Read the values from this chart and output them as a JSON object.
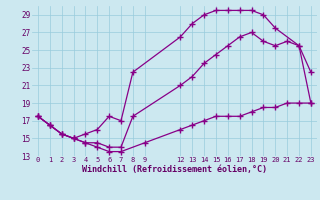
{
  "xlabel": "Windchill (Refroidissement éolien,°C)",
  "bg_color": "#cce8f0",
  "grid_color": "#99ccdd",
  "line_color": "#880088",
  "xlim": [
    -0.5,
    23.5
  ],
  "ylim": [
    13,
    30
  ],
  "xticks": [
    0,
    1,
    2,
    3,
    4,
    5,
    6,
    7,
    8,
    9,
    12,
    13,
    14,
    15,
    16,
    17,
    18,
    19,
    20,
    21,
    22,
    23
  ],
  "yticks": [
    13,
    15,
    17,
    19,
    21,
    23,
    25,
    27,
    29
  ],
  "series1_x": [
    0,
    1,
    2,
    3,
    4,
    5,
    6,
    7,
    9,
    12,
    13,
    14,
    15,
    16,
    17,
    18,
    19,
    20,
    21,
    22,
    23
  ],
  "series1_y": [
    17.5,
    16.5,
    15.5,
    15.0,
    14.5,
    14.0,
    13.5,
    13.5,
    14.5,
    16.0,
    16.5,
    17.0,
    17.5,
    17.5,
    17.5,
    18.0,
    18.5,
    18.5,
    19.0,
    19.0,
    19.0
  ],
  "series2_x": [
    0,
    1,
    2,
    3,
    4,
    5,
    6,
    7,
    8,
    12,
    13,
    14,
    15,
    16,
    17,
    18,
    19,
    20,
    22,
    23
  ],
  "series2_y": [
    17.5,
    16.5,
    15.5,
    15.0,
    15.5,
    16.0,
    17.5,
    17.0,
    22.5,
    26.5,
    28.0,
    29.0,
    29.5,
    29.5,
    29.5,
    29.5,
    29.0,
    27.5,
    25.5,
    19.0
  ],
  "series3_x": [
    0,
    1,
    2,
    3,
    4,
    5,
    6,
    7,
    8,
    12,
    13,
    14,
    15,
    16,
    17,
    18,
    19,
    20,
    21,
    22,
    23
  ],
  "series3_y": [
    17.5,
    16.5,
    15.5,
    15.0,
    14.5,
    14.5,
    14.0,
    14.0,
    17.5,
    21.0,
    22.0,
    23.5,
    24.5,
    25.5,
    26.5,
    27.0,
    26.0,
    25.5,
    26.0,
    25.5,
    22.5
  ]
}
